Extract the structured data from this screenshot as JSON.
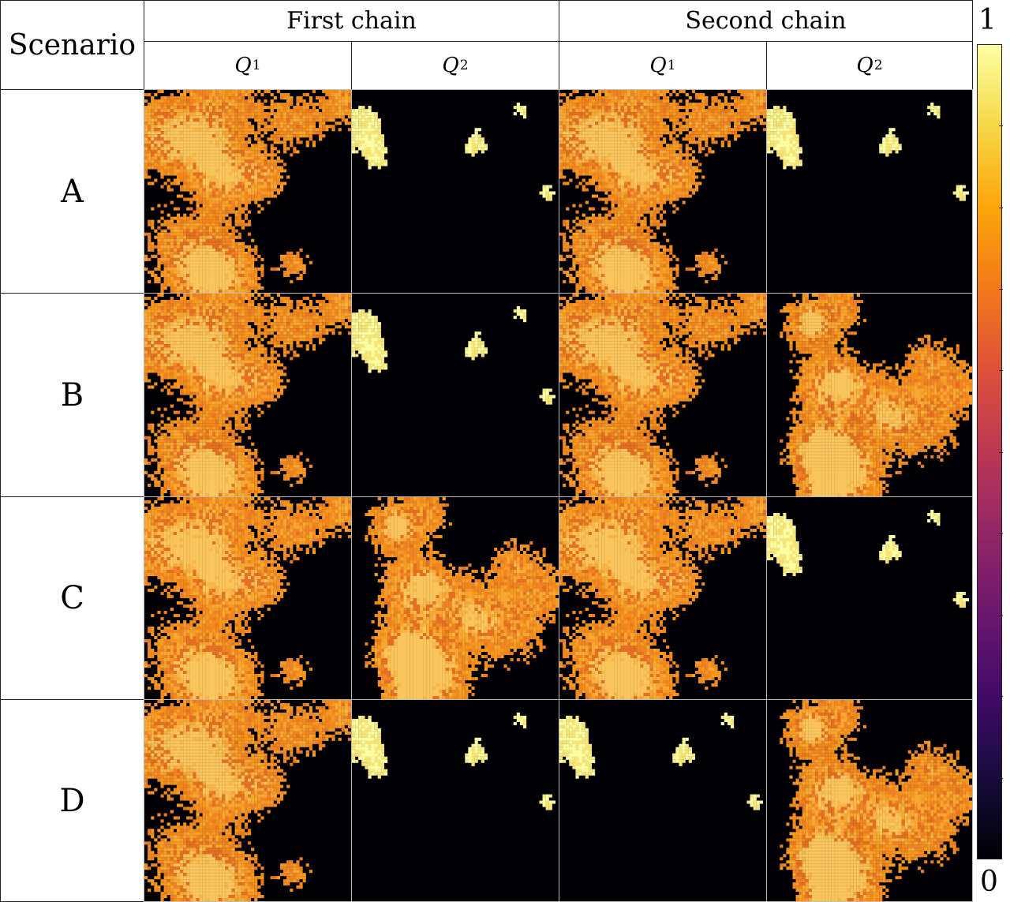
{
  "header": {
    "scenario_label": "Scenario",
    "chains": [
      "First chain",
      "Second chain"
    ],
    "quantities": [
      {
        "symbol": "Q",
        "sub": "1"
      },
      {
        "symbol": "Q",
        "sub": "2"
      },
      {
        "symbol": "Q",
        "sub": "1"
      },
      {
        "symbol": "Q",
        "sub": "2"
      }
    ]
  },
  "rows": [
    {
      "label": "A",
      "panels": [
        "q1-map",
        "q2-map",
        "q1-map",
        "q2-map"
      ]
    },
    {
      "label": "B",
      "panels": [
        "q1-map",
        "q2-map",
        "q1-map",
        "q1-alt-map"
      ]
    },
    {
      "label": "C",
      "panels": [
        "q1-map",
        "q1-alt-map",
        "q1-map",
        "q2-map"
      ]
    },
    {
      "label": "D",
      "panels": [
        "q1-map",
        "q2-map",
        "q2-map",
        "q1-alt-map"
      ]
    }
  ],
  "colorbar": {
    "max_label": "1",
    "min_label": "0",
    "colormap": "inferno",
    "colors": {
      "high": "#fcffa4",
      "orange": "#f28b1a",
      "low": "#000004"
    }
  }
}
